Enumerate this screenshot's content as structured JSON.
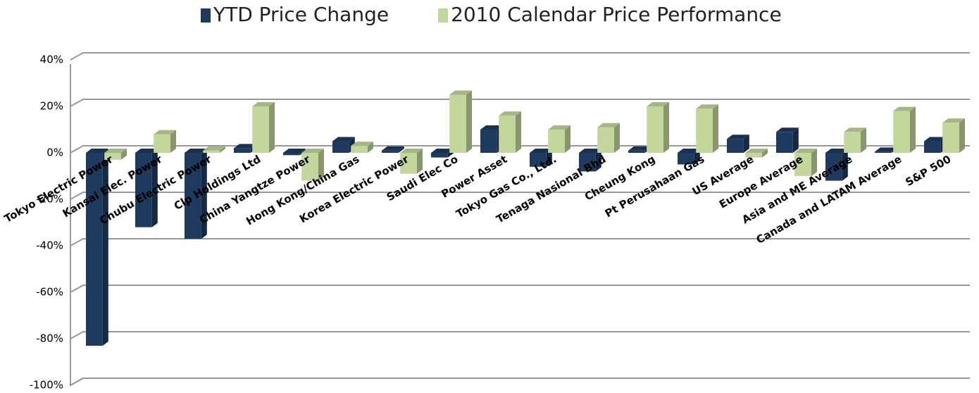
{
  "chart_data": {
    "type": "bar",
    "categories": [
      "Tokyo Electric Power",
      "Kansai Elec. Power",
      "Chubu Electric Power",
      "Clp Holdings Ltd",
      "China Yangtze Power",
      "Hong Kong/China Gas",
      "Korea Electric Power",
      "Saudi Elec Co",
      "Power Asset",
      "Tokyo Gas Co., Ltd.",
      "Tenaga Nasional Bhd",
      "Cheung Kong",
      "Pt Perusahaan Gas",
      "US Average",
      "Europe Average",
      "Asia and ME Average",
      "Canada and LATAM Average",
      "S&P 500"
    ],
    "series": [
      {
        "name": "YTD Price Change",
        "color": "#1f3a5f",
        "values": [
          -83,
          -32,
          -37,
          2,
          -1,
          5,
          1,
          -2,
          10,
          -6,
          -8,
          1,
          -5,
          6,
          9,
          -12,
          0.5,
          5
        ]
      },
      {
        "name": "2010 Calendar Price Performance",
        "color": "#c3d69b",
        "values": [
          -3,
          8,
          1,
          20,
          -12,
          3,
          -9,
          25,
          16,
          10,
          11,
          20,
          19,
          -2,
          -10,
          9,
          18,
          13
        ]
      }
    ],
    "ylim": [
      -100,
      40
    ],
    "yticks": [
      {
        "value": -100,
        "label": "-100%"
      },
      {
        "value": -80,
        "label": "-80%"
      },
      {
        "value": -60,
        "label": "-60%"
      },
      {
        "value": -40,
        "label": "-40%"
      },
      {
        "value": -20,
        "label": "-20%"
      },
      {
        "value": 0,
        "label": "0%"
      },
      {
        "value": 20,
        "label": "20%"
      },
      {
        "value": 40,
        "label": "40%"
      }
    ],
    "grid": true,
    "legend": "top"
  }
}
